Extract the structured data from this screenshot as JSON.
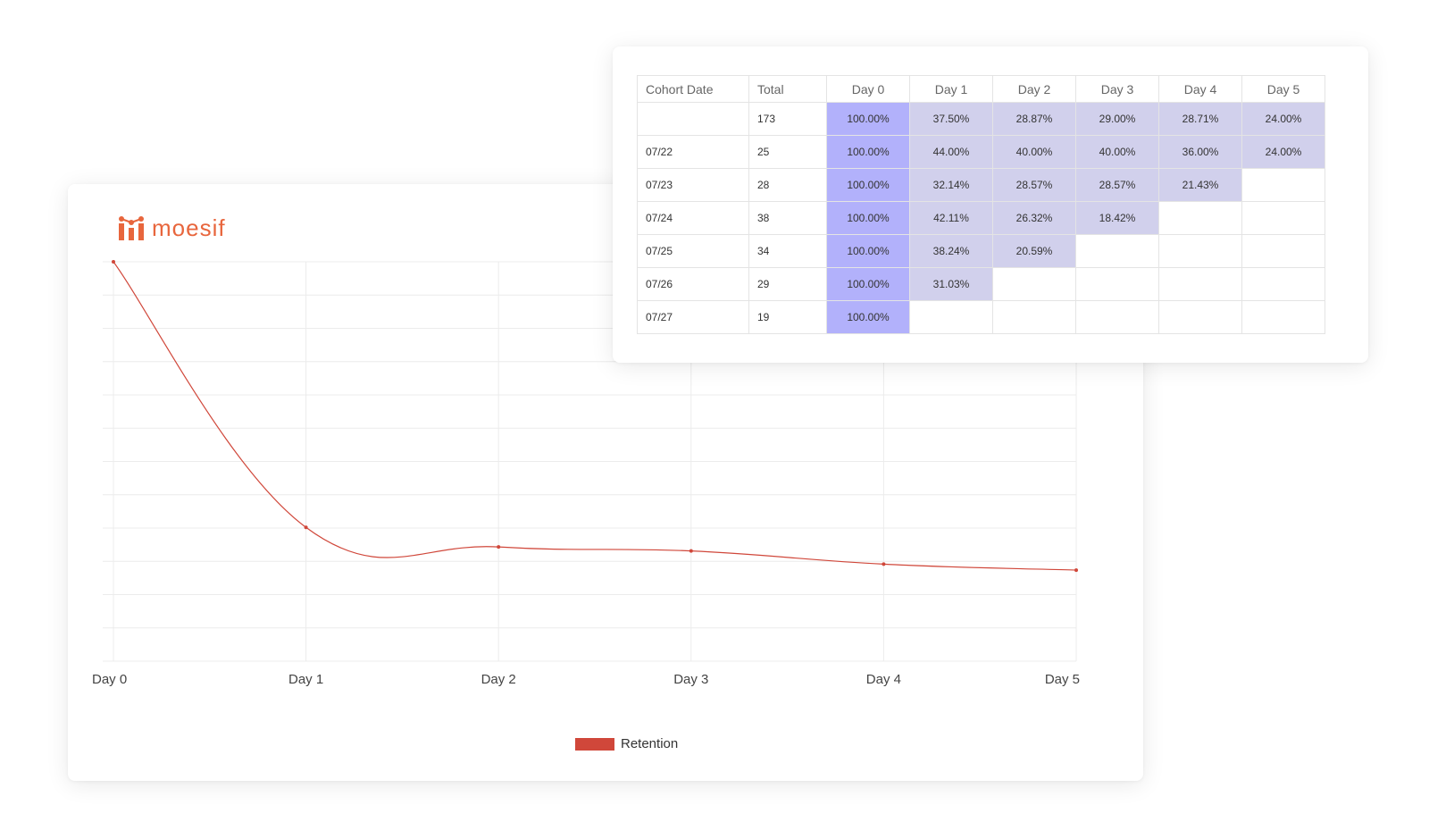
{
  "brand": {
    "logo_text": "moesif",
    "accent": "#e8663d"
  },
  "chart_data": {
    "type": "line",
    "categories": [
      "Day 0",
      "Day 1",
      "Day 2",
      "Day 3",
      "Day 4",
      "Day 5"
    ],
    "series": [
      {
        "name": "Retention",
        "values": [
          100.0,
          33.5,
          28.6,
          27.6,
          24.3,
          22.8
        ],
        "color": "#d0473a"
      }
    ],
    "ylim": [
      0,
      100
    ],
    "grid": true,
    "legend_position": "bottom"
  },
  "cohort_table": {
    "headers": [
      "Cohort Date",
      "Total",
      "Day 0",
      "Day 1",
      "Day 2",
      "Day 3",
      "Day 4",
      "Day 5"
    ],
    "rows": [
      {
        "date": "",
        "total": "173",
        "cells": [
          "100.00%",
          "37.50%",
          "28.87%",
          "29.00%",
          "28.71%",
          "24.00%"
        ]
      },
      {
        "date": "07/22",
        "total": "25",
        "cells": [
          "100.00%",
          "44.00%",
          "40.00%",
          "40.00%",
          "36.00%",
          "24.00%"
        ]
      },
      {
        "date": "07/23",
        "total": "28",
        "cells": [
          "100.00%",
          "32.14%",
          "28.57%",
          "28.57%",
          "21.43%",
          ""
        ]
      },
      {
        "date": "07/24",
        "total": "38",
        "cells": [
          "100.00%",
          "42.11%",
          "26.32%",
          "18.42%",
          "",
          ""
        ]
      },
      {
        "date": "07/25",
        "total": "34",
        "cells": [
          "100.00%",
          "38.24%",
          "20.59%",
          "",
          "",
          ""
        ]
      },
      {
        "date": "07/26",
        "total": "29",
        "cells": [
          "100.00%",
          "31.03%",
          "",
          "",
          "",
          ""
        ]
      },
      {
        "date": "07/27",
        "total": "19",
        "cells": [
          "100.00%",
          "",
          "",
          "",
          "",
          ""
        ]
      }
    ],
    "colors": {
      "day0": "#b2b1fb",
      "later": "#d1d0ec"
    }
  }
}
